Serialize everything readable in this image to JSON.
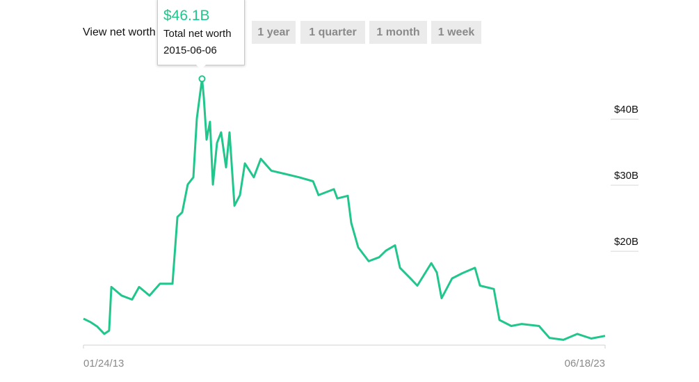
{
  "controls": {
    "label": "View net worth",
    "buttons": [
      "1 year",
      "1 quarter",
      "1 month",
      "1 week"
    ]
  },
  "chart_data": {
    "type": "line",
    "color": "#20c68b",
    "x": [
      "2013-01-24",
      "2013-03-15",
      "2013-05-05",
      "2013-06-25",
      "2013-07-30",
      "2013-08-15",
      "2013-10-29",
      "2014-01-13",
      "2014-03-05",
      "2014-05-20",
      "2014-08-04",
      "2014-11-03",
      "2014-12-09",
      "2015-01-13",
      "2015-02-22",
      "2015-04-04",
      "2015-04-29",
      "2015-06-06",
      "2015-06-19",
      "2015-07-09",
      "2015-08-03",
      "2015-08-24",
      "2015-09-23",
      "2015-10-23",
      "2015-11-28",
      "2015-12-23",
      "2016-01-28",
      "2016-03-08",
      "2016-04-13",
      "2016-06-17",
      "2016-08-07",
      "2016-10-22",
      "2017-01-31",
      "2017-05-13",
      "2017-08-22",
      "2017-10-01",
      "2018-01-21",
      "2018-02-15",
      "2018-05-02",
      "2018-05-27",
      "2018-07-17",
      "2018-10-01",
      "2018-12-16",
      "2019-02-04",
      "2019-04-11",
      "2019-05-17",
      "2019-08-01",
      "2019-09-20",
      "2019-12-31",
      "2020-02-09",
      "2020-03-15",
      "2020-05-30",
      "2020-08-14",
      "2020-11-13",
      "2020-12-19",
      "2021-03-30",
      "2021-05-10",
      "2021-08-04",
      "2021-10-19",
      "2022-02-22",
      "2022-05-09",
      "2022-08-18",
      "2022-11-28",
      "2023-03-09",
      "2023-06-18"
    ],
    "values": [
      9.8,
      9.3,
      8.6,
      7.5,
      8.0,
      14.6,
      13.3,
      12.7,
      14.6,
      13.3,
      15.1,
      15.1,
      25.2,
      25.9,
      30.1,
      31.2,
      40.1,
      46.1,
      43.3,
      36.9,
      39.6,
      30.1,
      36.4,
      38.0,
      32.7,
      38.0,
      26.9,
      28.5,
      33.3,
      31.2,
      34.0,
      32.2,
      31.7,
      31.2,
      30.6,
      28.5,
      29.4,
      28.0,
      28.4,
      24.3,
      20.6,
      18.5,
      19.1,
      20.1,
      20.9,
      17.5,
      15.9,
      14.8,
      18.2,
      16.8,
      12.9,
      15.9,
      16.7,
      17.5,
      14.8,
      14.3,
      9.6,
      8.7,
      9.0,
      8.7,
      6.9,
      6.6,
      7.5,
      6.8,
      7.2
    ],
    "xlim": [
      "2013-01-24",
      "2023-06-18"
    ],
    "xticks": [
      {
        "value": "2013-01-24",
        "label": "01/24/13"
      },
      {
        "value": "2023-06-18",
        "label": "06/18/23"
      }
    ],
    "ylim": [
      5.8,
      47.5
    ],
    "yticks": [
      {
        "value": 20,
        "label": "$20B"
      },
      {
        "value": 30,
        "label": "$30B"
      },
      {
        "value": 40,
        "label": "$40B"
      }
    ],
    "tooltip": {
      "value_label": "$46.1B",
      "name": "Total net worth",
      "date": "2015-06-06"
    }
  }
}
